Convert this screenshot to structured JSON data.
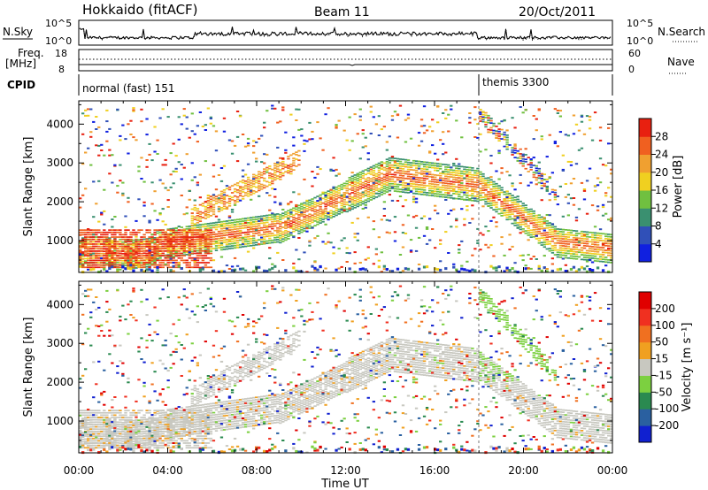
{
  "header": {
    "station": "Hokkaido (fitACF)",
    "beam": "Beam 11",
    "date": "20/Oct/2011"
  },
  "nsky_panel": {
    "left_label": "N.Sky",
    "right_label": "N.Search",
    "left_ticks": [
      "10^5",
      "10^0"
    ],
    "right_ticks": [
      "10^5",
      "10^0"
    ]
  },
  "freq_panel": {
    "left_label_1": "Freq.",
    "left_label_2": "[MHz]",
    "left_ticks": [
      "18",
      "8"
    ],
    "right_label": "Nave",
    "right_ticks": [
      "60",
      "0"
    ]
  },
  "cpid_panel": {
    "label": "CPID",
    "modes": [
      {
        "name": "normal (fast) 151",
        "start_hour": 0
      },
      {
        "name": "themis 3300",
        "start_hour": 18
      }
    ]
  },
  "chart_data": [
    {
      "type": "heatmap",
      "panel": "power",
      "ylabel": "Slant Range [km]",
      "xlabel": "",
      "xlim_hours": [
        0,
        24
      ],
      "ylim": [
        180,
        4600
      ],
      "y_ticks": [
        1000,
        2000,
        3000,
        4000
      ],
      "colorbar": {
        "label": "Power [dB]",
        "ticks": [
          "4",
          "8",
          "12",
          "16",
          "20",
          "24",
          "28"
        ],
        "vmin": 0,
        "vmax": 32,
        "colors": [
          "#1020e0",
          "#3050b8",
          "#3a9070",
          "#70c040",
          "#f0d020",
          "#f0a030",
          "#f06020",
          "#e82010"
        ]
      }
    },
    {
      "type": "heatmap",
      "panel": "velocity",
      "ylabel": "Slant Range [km]",
      "xlabel": "Time UT",
      "xlim_hours": [
        0,
        24
      ],
      "ylim": [
        180,
        4600
      ],
      "y_ticks": [
        1000,
        2000,
        3000,
        4000
      ],
      "x_tick_labels": [
        "00:00",
        "04:00",
        "08:00",
        "12:00",
        "16:00",
        "20:00",
        "00:00"
      ],
      "x_tick_hours": [
        0,
        4,
        8,
        12,
        16,
        20,
        24
      ],
      "colorbar": {
        "label": "Velocity [m s⁻¹]",
        "ticks": [
          "200",
          "100",
          "50",
          "15",
          "-15",
          "-50",
          "-100",
          "-200"
        ],
        "colors": [
          "#1020d0",
          "#2a60a0",
          "#2a8a50",
          "#7cd040",
          "#c8c8c0",
          "#f0a020",
          "#f07020",
          "#f03020",
          "#e00000"
        ]
      }
    }
  ]
}
